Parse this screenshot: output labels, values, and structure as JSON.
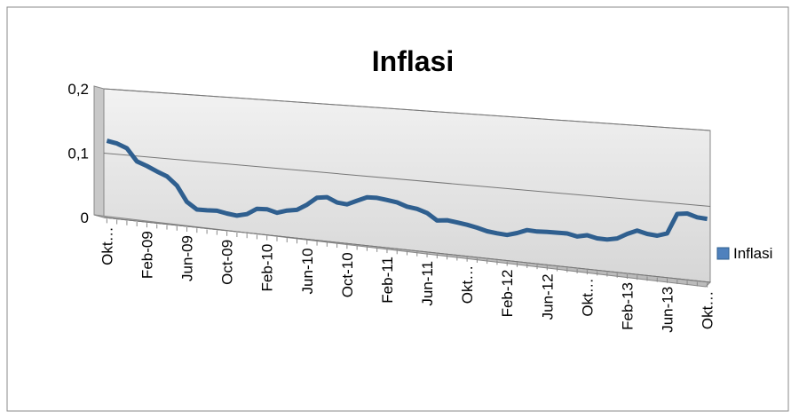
{
  "chart_data": {
    "type": "line",
    "title": "Inflasi",
    "categories": [
      "Okt…",
      null,
      null,
      null,
      "Feb-09",
      null,
      null,
      null,
      "Jun-09",
      null,
      null,
      null,
      "Oct-09",
      null,
      null,
      null,
      "Feb-10",
      null,
      null,
      null,
      "Jun-10",
      null,
      null,
      null,
      "Oct-10",
      null,
      null,
      null,
      "Feb-11",
      null,
      null,
      null,
      "Jun-11",
      null,
      null,
      null,
      "Okt…",
      null,
      null,
      null,
      "Feb-12",
      null,
      null,
      null,
      "Jun-12",
      null,
      null,
      null,
      "Okt…",
      null,
      null,
      null,
      "Feb-13",
      null,
      null,
      null,
      "Jun-13",
      null,
      null,
      null,
      "Okt…"
    ],
    "series": [
      {
        "name": "Inflasi",
        "color": "#2f5f8f",
        "values": [
          0.1196,
          0.1168,
          0.1106,
          0.0917,
          0.086,
          0.0792,
          0.0731,
          0.0604,
          0.0371,
          0.0271,
          0.0275,
          0.0283,
          0.0257,
          0.0241,
          0.0278,
          0.0372,
          0.0381,
          0.0343,
          0.0391,
          0.0416,
          0.0505,
          0.0622,
          0.0644,
          0.058,
          0.0567,
          0.0633,
          0.0696,
          0.0702,
          0.0684,
          0.0665,
          0.0616,
          0.0598,
          0.0554,
          0.0461,
          0.0479,
          0.0461,
          0.0442,
          0.0415,
          0.0379,
          0.0365,
          0.0356,
          0.0397,
          0.045,
          0.0445,
          0.0453,
          0.0456,
          0.0458,
          0.0431,
          0.0461,
          0.0432,
          0.043,
          0.0457,
          0.0531,
          0.059,
          0.0557,
          0.0547,
          0.059,
          0.0861,
          0.0879,
          0.084,
          0.0832
        ]
      }
    ],
    "ylim": [
      0,
      0.2
    ],
    "yticks": [
      {
        "value": 0,
        "label": "0"
      },
      {
        "value": 0.1,
        "label": "0,1"
      },
      {
        "value": 0.2,
        "label": "0,2"
      }
    ],
    "grid": true,
    "legend": "right"
  }
}
